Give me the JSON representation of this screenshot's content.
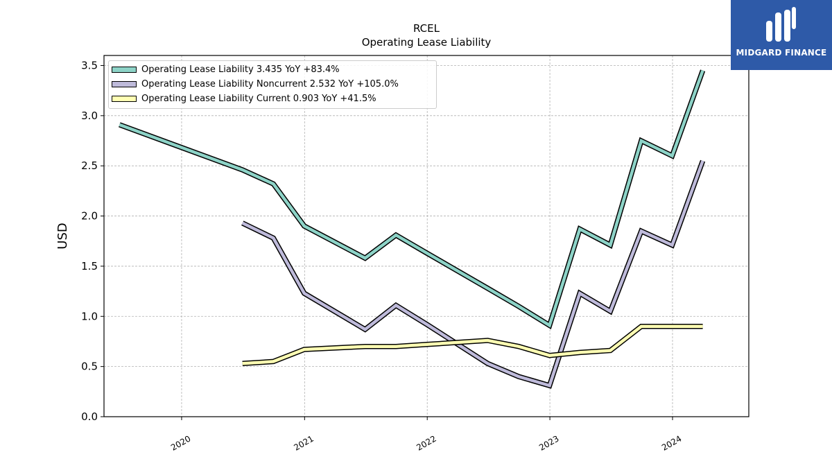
{
  "title": "RCEL",
  "subtitle": "Operating Lease Liability",
  "logo": {
    "text": "MIDGARD FINANCE",
    "color": "#2e5aa8"
  },
  "chart_data": {
    "type": "line",
    "title": "RCEL",
    "subtitle": "Operating Lease Liability",
    "xlabel": "",
    "ylabel": "USD",
    "ylim": [
      0,
      3.6
    ],
    "xlim": [
      "2019-05-15",
      "2024-08-15"
    ],
    "y_ticks": [
      "0.0",
      "0.5",
      "1.0",
      "1.5",
      "2.0",
      "2.5",
      "3.0",
      "3.5"
    ],
    "x_ticks": [
      "2020",
      "2021",
      "2022",
      "2023",
      "2024"
    ],
    "grid": true,
    "legend_position": "top-left",
    "series": [
      {
        "name": "Operating Lease Liability",
        "legend": "Operating Lease Liability  3.435 YoY +83.4%",
        "color": "#8dd3c7",
        "points": [
          [
            "2019-06-30",
            2.91
          ],
          [
            "2020-06-30",
            2.46
          ],
          [
            "2020-09-30",
            2.32
          ],
          [
            "2020-12-31",
            1.9
          ],
          [
            "2021-06-30",
            1.58
          ],
          [
            "2021-09-30",
            1.81
          ],
          [
            "2021-12-31",
            1.63
          ],
          [
            "2022-06-30",
            1.28
          ],
          [
            "2022-09-30",
            1.1
          ],
          [
            "2022-12-31",
            0.91
          ],
          [
            "2023-03-31",
            1.87
          ],
          [
            "2023-06-30",
            1.71
          ],
          [
            "2023-09-30",
            2.75
          ],
          [
            "2023-12-31",
            2.6
          ],
          [
            "2024-03-31",
            3.45
          ]
        ]
      },
      {
        "name": "Operating Lease Liability Noncurrent",
        "legend": "Operating Lease Liability Noncurrent  2.532 YoY +105.0%",
        "color": "#bebada",
        "points": [
          [
            "2020-06-30",
            1.93
          ],
          [
            "2020-09-30",
            1.78
          ],
          [
            "2020-12-31",
            1.23
          ],
          [
            "2021-06-30",
            0.87
          ],
          [
            "2021-09-30",
            1.11
          ],
          [
            "2021-12-31",
            0.92
          ],
          [
            "2022-06-30",
            0.53
          ],
          [
            "2022-09-30",
            0.4
          ],
          [
            "2022-12-31",
            0.31
          ],
          [
            "2023-03-31",
            1.23
          ],
          [
            "2023-06-30",
            1.05
          ],
          [
            "2023-09-30",
            1.85
          ],
          [
            "2023-12-31",
            1.71
          ],
          [
            "2024-03-31",
            2.55
          ]
        ]
      },
      {
        "name": "Operating Lease Liability Current",
        "legend": "Operating Lease Liability Current  0.903 YoY +41.5%",
        "color": "#ffffb3",
        "points": [
          [
            "2020-06-30",
            0.53
          ],
          [
            "2020-09-30",
            0.55
          ],
          [
            "2020-12-31",
            0.67
          ],
          [
            "2021-06-30",
            0.7
          ],
          [
            "2021-09-30",
            0.7
          ],
          [
            "2021-12-31",
            0.72
          ],
          [
            "2022-06-30",
            0.76
          ],
          [
            "2022-09-30",
            0.7
          ],
          [
            "2022-12-31",
            0.61
          ],
          [
            "2023-03-31",
            0.64
          ],
          [
            "2023-06-30",
            0.66
          ],
          [
            "2023-09-30",
            0.9
          ],
          [
            "2023-12-31",
            0.9
          ],
          [
            "2024-03-31",
            0.9
          ]
        ]
      }
    ]
  }
}
